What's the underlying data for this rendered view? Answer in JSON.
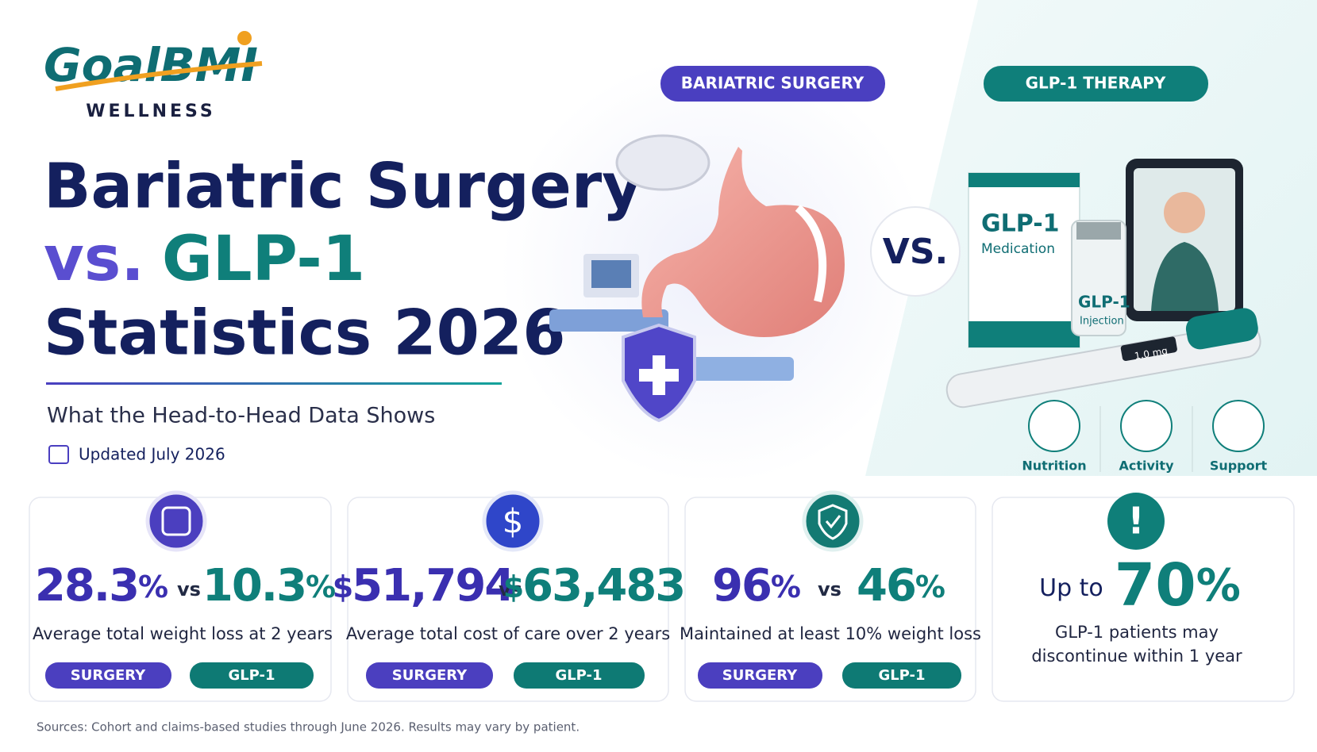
{
  "logo": {
    "name": "GoalBMI",
    "tagline": "WELLNESS"
  },
  "title": {
    "line1": "Bariatric Surgery",
    "vs": "vs.",
    "glp": "GLP-1",
    "line3": "Statistics 2026"
  },
  "subtitle": "What the Head-to-Head Data Shows",
  "updated": "Updated July 2026",
  "badges": [
    "BARIATRIC SURGERY",
    "GLP-1 THERAPY"
  ],
  "vs": "VS.",
  "product": {
    "box_title": "GLP-1",
    "box_sub": "Medication",
    "vial_title": "GLP-1",
    "vial_sub": "Injection",
    "pen_dose": "1.0 mg"
  },
  "support_icons": [
    "Nutrition",
    "Activity",
    "Support"
  ],
  "stats": [
    {
      "surgery": "28.3",
      "surgery_unit": "%",
      "vs": "vs",
      "glp": "10.3",
      "glp_unit": "%",
      "caption": "Average total weight loss at 2 years",
      "tags": [
        "SURGERY",
        "GLP-1"
      ]
    },
    {
      "surgery_prefix": "$",
      "surgery": "51,794",
      "vs": "vs",
      "glp_prefix": "$",
      "glp": "63,483",
      "caption": "Average total cost of care over 2 years",
      "tags": [
        "SURGERY",
        "GLP-1"
      ]
    },
    {
      "surgery": "96",
      "surgery_unit": "%",
      "vs": "vs",
      "glp": "46",
      "glp_unit": "%",
      "caption": "Maintained at least 10% weight loss",
      "tags": [
        "SURGERY",
        "GLP-1"
      ]
    }
  ],
  "highlight": {
    "prefix": "Up to",
    "value": "70",
    "unit": "%",
    "caption_lines": [
      "GLP-1 patients may",
      "discontinue within 1 year"
    ]
  },
  "sources": "Sources: Cohort and claims-based studies through June 2026. Results may vary by patient."
}
